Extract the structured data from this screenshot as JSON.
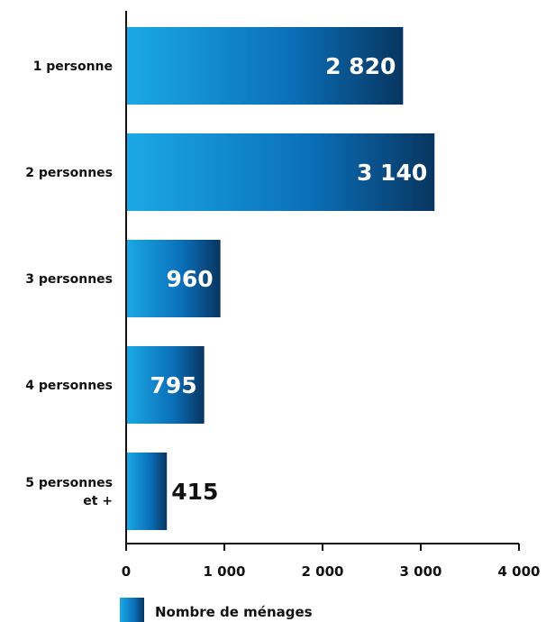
{
  "chart_data": {
    "type": "bar",
    "orientation": "horizontal",
    "categories": [
      "1 personne",
      "2 personnes",
      "3 personnes",
      "4 personnes",
      "5 personnes et +"
    ],
    "category_lines": [
      [
        "1 personne"
      ],
      [
        "2 personnes"
      ],
      [
        "3 personnes"
      ],
      [
        "4 personnes"
      ],
      [
        "5 personnes",
        "et +"
      ]
    ],
    "series": [
      {
        "name": "Nombre de ménages",
        "values": [
          2820,
          3140,
          960,
          795,
          415
        ]
      }
    ],
    "value_labels": [
      "2 820",
      "3 140",
      "960",
      "795",
      "415"
    ],
    "xlim": [
      0,
      4000
    ],
    "xticks": [
      0,
      1000,
      2000,
      3000,
      4000
    ],
    "xtick_labels": [
      "0",
      "1 000",
      "2 000",
      "3 000",
      "4 000"
    ],
    "grid": false,
    "legend_position": "bottom-left",
    "colors": {
      "bar_light": "#1ba9e6",
      "bar_mid": "#0a6fb8",
      "bar_dark": "#083560",
      "text": "#111111",
      "value_text_inside": "#ffffff"
    }
  }
}
